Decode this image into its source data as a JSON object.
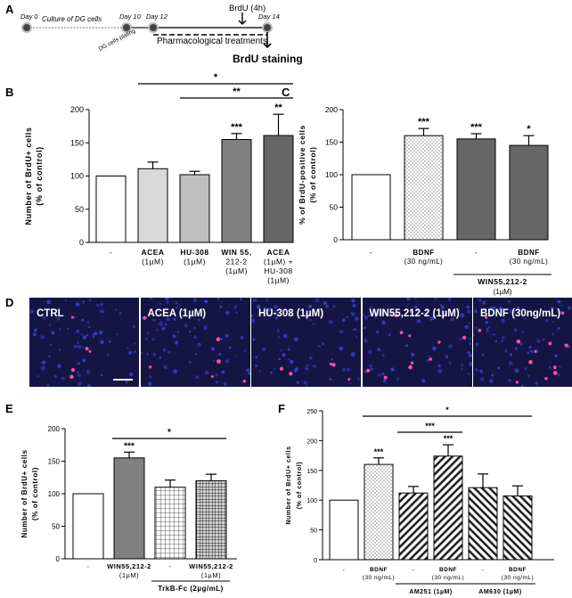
{
  "panel_letters": [
    "A",
    "B",
    "C",
    "D",
    "E",
    "F"
  ],
  "timeline": {
    "days": [
      "Day 0",
      "Day 10",
      "Day 12",
      "Day 14"
    ],
    "culture_label": "Culture of DG cells",
    "plating_label": "DG cells plating",
    "brdu_pulse_label": "BrdU (4h)",
    "treatment_label": "Pharmacological treatments",
    "staining_label": "BrdU staining"
  },
  "chart_data": [
    {
      "id": "B",
      "type": "bar",
      "ylabel": "Number of BrdU+ cells (% of control)",
      "ylim": [
        0,
        200
      ],
      "yticks": [
        0,
        50,
        100,
        150,
        200
      ],
      "categories": [
        [
          "-"
        ],
        [
          "ACEA",
          "(1µM)"
        ],
        [
          "HU-308",
          "(1µM)"
        ],
        [
          "WIN 55,",
          "212-2",
          "(1µM)"
        ],
        [
          "ACEA",
          "(1µM) +",
          "HU-308",
          "(1µM)"
        ]
      ],
      "values": [
        100,
        111,
        102,
        155,
        161
      ],
      "errors": [
        0,
        10,
        5,
        9,
        32
      ],
      "fills": [
        "white",
        "#d9d9d9",
        "#bfbfbf",
        "#808080",
        "#666666"
      ],
      "star_labels": [
        "",
        "",
        "",
        "***",
        "**"
      ],
      "comparisons": [
        {
          "from": 1,
          "to": 4,
          "label": "*"
        },
        {
          "from": 2,
          "to": 4,
          "label": "**"
        }
      ]
    },
    {
      "id": "C",
      "type": "bar",
      "ylabel": "% of BrdU-positive cells (% of control)",
      "ylim": [
        0,
        200
      ],
      "yticks": [
        0,
        50,
        100,
        150,
        200
      ],
      "categories": [
        [
          "-"
        ],
        [
          "BDNF",
          "(30 ng/mL)"
        ],
        [
          "-"
        ],
        [
          "BDNF",
          "(30 ng/mL)"
        ]
      ],
      "values": [
        100,
        160,
        155,
        145
      ],
      "errors": [
        0,
        11,
        8,
        15
      ],
      "fills": [
        "white",
        "dots",
        "#666666",
        "#666666"
      ],
      "star_labels": [
        "",
        "***",
        "***",
        "*"
      ],
      "groups": [
        {
          "from": 2,
          "to": 3,
          "label": "WIN55,212-2",
          "sublabel": "(1µM)"
        }
      ]
    },
    {
      "id": "E",
      "type": "bar",
      "ylabel": "Number of BrdU+ cells (% of control)",
      "ylim": [
        0,
        200
      ],
      "yticks": [
        0,
        50,
        100,
        150,
        200
      ],
      "categories": [
        [
          "-"
        ],
        [
          "WIN55,212-2",
          "(1µM)"
        ],
        [
          "-"
        ],
        [
          "WIN55,212-2",
          "(1µM)"
        ]
      ],
      "values": [
        100,
        155,
        110,
        120
      ],
      "errors": [
        0,
        9,
        11,
        10
      ],
      "fills": [
        "white",
        "#808080",
        "grid",
        "gridDark"
      ],
      "star_labels": [
        "",
        "***",
        "",
        ""
      ],
      "comparisons": [
        {
          "from": 1,
          "to": 3,
          "label": "*"
        }
      ],
      "groups": [
        {
          "from": 2,
          "to": 3,
          "label": "TrkB-Fc (2µg/mL)",
          "sublabel": ""
        }
      ]
    },
    {
      "id": "F",
      "type": "bar",
      "ylabel": "Number of BrdU+ cells (% of control)",
      "ylim": [
        0,
        250
      ],
      "yticks": [
        0,
        50,
        100,
        150,
        200,
        250
      ],
      "categories": [
        [
          "-"
        ],
        [
          "BDNF",
          "(30 ng/mL)"
        ],
        [
          "-"
        ],
        [
          "BDNF",
          "(30 ng/mL)"
        ],
        [
          "-"
        ],
        [
          "BDNF",
          "(30 ng/mL)"
        ]
      ],
      "values": [
        100,
        160,
        112,
        174,
        121,
        107
      ],
      "errors": [
        0,
        11,
        11,
        19,
        23,
        17
      ],
      "fills": [
        "white",
        "dots",
        "hatchR",
        "hatchR",
        "hatchL",
        "hatchL"
      ],
      "star_labels": [
        "",
        "***",
        "",
        "***",
        "",
        ""
      ],
      "comparisons": [
        {
          "from": 2,
          "to": 3,
          "label": "***"
        },
        {
          "from": 1,
          "to": 5,
          "label": "*"
        }
      ],
      "groups": [
        {
          "from": 2,
          "to": 3,
          "label": "AM251 (1µM)",
          "sublabel": ""
        },
        {
          "from": 4,
          "to": 5,
          "label": "AM630 (1µM)",
          "sublabel": ""
        }
      ]
    }
  ],
  "micrographs": [
    {
      "label": "CTRL",
      "red_cells": 5
    },
    {
      "label": "ACEA (1µM)",
      "red_cells": 6
    },
    {
      "label": "HU-308 (1µM)",
      "red_cells": 5
    },
    {
      "label": "WIN55,212-2 (1µM)",
      "red_cells": 11
    },
    {
      "label": "BDNF (30ng/mL)",
      "red_cells": 12
    }
  ]
}
